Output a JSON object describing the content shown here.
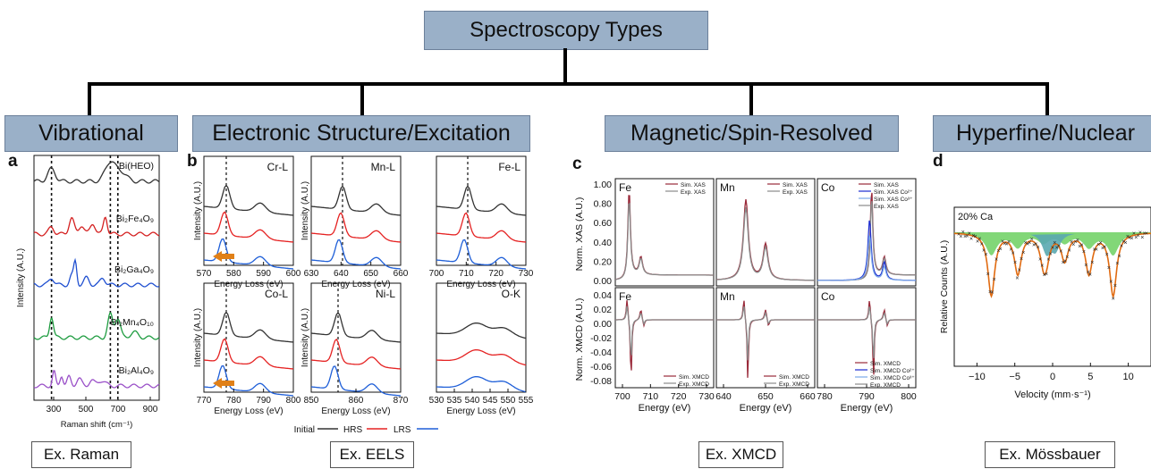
{
  "root_title": "Spectroscopy Types",
  "categories": [
    {
      "label": "Vibrational",
      "example": "Ex. Raman"
    },
    {
      "label": "Electronic Structure/Excitation",
      "example": "Ex. EELS"
    },
    {
      "label": "Magnetic/Spin-Resolved",
      "example": "Ex. XMCD"
    },
    {
      "label": "Hyperfine/Nuclear",
      "example": "Ex. Mössbauer"
    }
  ],
  "panels": {
    "a": {
      "letter": "a",
      "ylabel": "Intensity (A.U.)",
      "xlabel": "Raman shift (cm⁻¹)",
      "xticks": [
        "300",
        "500",
        "700",
        "900"
      ],
      "samples": [
        "Bi(HEO)",
        "Bi₂Fe₄O₉",
        "Bi₂Ga₄O₉",
        "Bi₂Mn₄O₁₀",
        "Bi₂Al₄O₉"
      ],
      "colors": [
        "#333333",
        "#d42020",
        "#1f4fd0",
        "#1e9c40",
        "#9a50c8"
      ]
    },
    "b": {
      "letter": "b",
      "ylabel": "Intensity (A.U.)",
      "xlabel": "Energy Loss (eV)",
      "edges": [
        {
          "label": "Cr-L",
          "ticks": [
            "570",
            "580",
            "590",
            "600"
          ]
        },
        {
          "label": "Mn-L",
          "ticks": [
            "630",
            "640",
            "650",
            "660"
          ]
        },
        {
          "label": "Fe-L",
          "ticks": [
            "700",
            "710",
            "720",
            "730"
          ]
        },
        {
          "label": "Co-L",
          "ticks": [
            "770",
            "780",
            "790",
            "800"
          ]
        },
        {
          "label": "Ni-L",
          "ticks": [
            "850",
            "860",
            "870"
          ]
        },
        {
          "label": "O-K",
          "ticks": [
            "530",
            "535",
            "540",
            "545",
            "550",
            "555"
          ]
        }
      ],
      "legend": [
        "Initial",
        "HRS",
        "LRS"
      ],
      "colors": [
        "#333333",
        "#e52222",
        "#1f5fd8"
      ]
    },
    "c": {
      "letter": "c",
      "ylabel_top": "Norm. XAS (A.U.)",
      "ylabel_bottom": "Norm. XMCD (A.U.)",
      "xlabel": "Energy (eV)",
      "elements": [
        "Fe",
        "Mn",
        "Co"
      ],
      "yticks_top": [
        "1.00",
        "0.80",
        "0.60",
        "0.40",
        "0.20",
        "0.00"
      ],
      "yticks_bottom": [
        "0.04",
        "0.02",
        "0.00",
        "-0.02",
        "-0.04",
        "-0.06",
        "-0.08"
      ],
      "xticks": [
        [
          "700",
          "710",
          "720",
          "730"
        ],
        [
          "640",
          "650",
          "660"
        ],
        [
          "780",
          "790",
          "800"
        ]
      ],
      "legend_top_fe": [
        "Sim. XAS",
        "Exp. XAS"
      ],
      "legend_top_co": [
        "Sim. XAS",
        "Sim. XAS Co²⁺",
        "Sim. XAS Co³⁺",
        "Exp. XAS"
      ],
      "legend_bottom_fe": [
        "Sim. XMCD",
        "Exp. XMCD"
      ],
      "legend_bottom_co": [
        "Sim. XMCD",
        "Sim. XMCD Co²⁺",
        "Sim. XMCD Co³⁺",
        "Exp. XMCD"
      ],
      "colors": {
        "sim": "#9a2a3a",
        "exp": "#8a8a8a",
        "co2": "#1a2ad0",
        "co3": "#7aa8e8"
      }
    },
    "d": {
      "letter": "d",
      "sample": "20% Ca",
      "ylabel": "Relative Counts (A.U.)",
      "xlabel": "Velocity (mm·s⁻¹)",
      "xticks": [
        "−10",
        "−5",
        "0",
        "5",
        "10"
      ],
      "colors": {
        "envelope": "#e06a10",
        "sextet": "#6cd060",
        "doublet": "#5aa8b0",
        "data": "#222222"
      }
    }
  }
}
